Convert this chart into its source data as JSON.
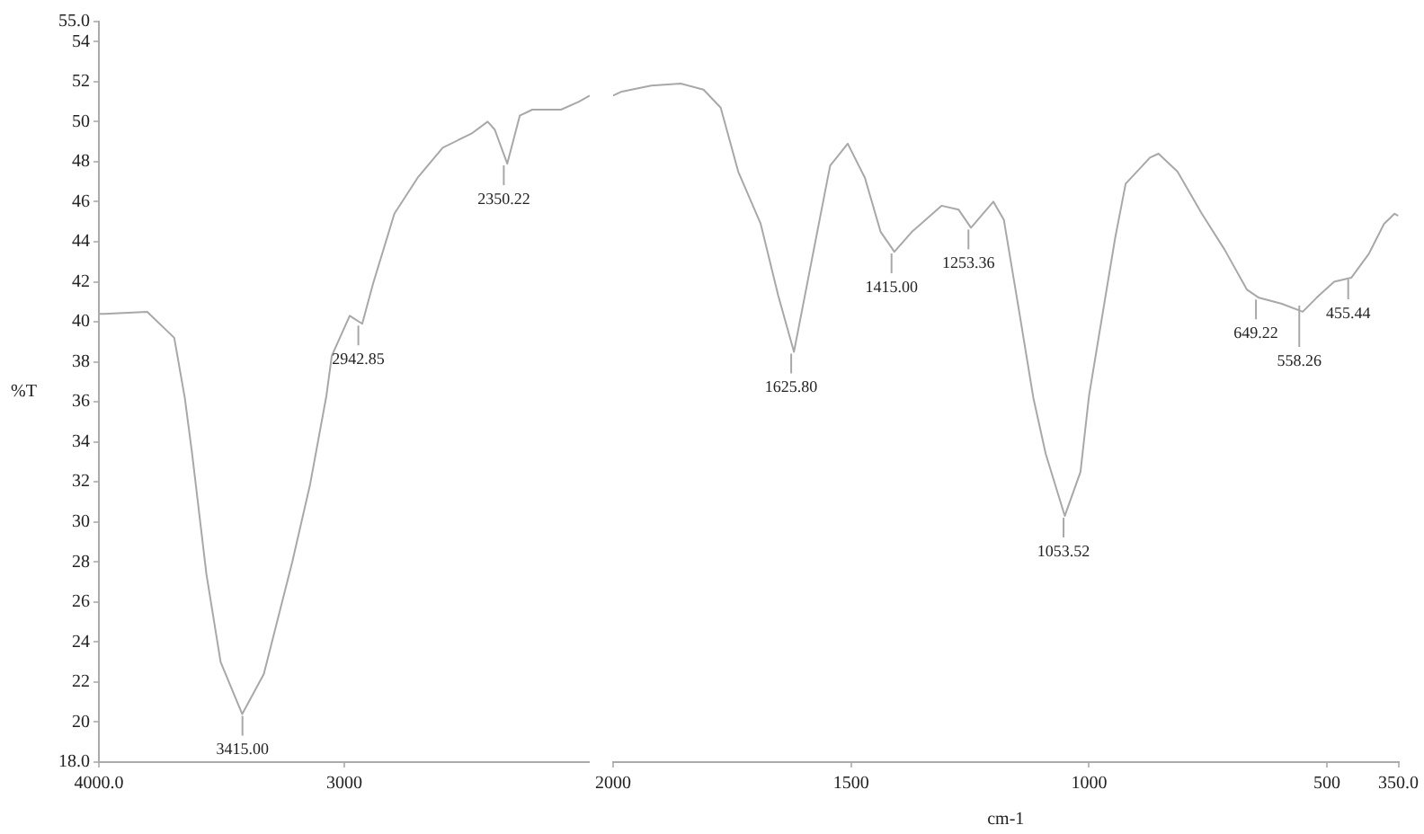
{
  "chart_data": [
    {
      "type": "line",
      "ylabel": "%T",
      "x": [
        4000,
        3978,
        3803,
        3693,
        3650,
        3620,
        3562,
        3504,
        3416,
        3328,
        3212,
        3139,
        3073,
        3051,
        2978,
        2927,
        2883,
        2796,
        2701,
        2599,
        2482,
        2416,
        2387,
        2336,
        2285,
        2234,
        2117,
        2044,
        2000
      ],
      "series": [
        {
          "color": "#a8a8a8",
          "values": [
            40.4,
            40.4,
            40.5,
            39.2,
            36.2,
            33.4,
            27.4,
            23.0,
            20.4,
            22.4,
            28.0,
            31.9,
            36.3,
            38.3,
            40.3,
            39.9,
            41.9,
            45.4,
            47.2,
            48.7,
            49.4,
            50.0,
            49.6,
            47.9,
            50.3,
            50.6,
            50.6,
            51.0,
            51.3
          ]
        }
      ],
      "xlim": [
        4000,
        2000
      ],
      "xticks": [
        {
          "value": 4000,
          "label": "4000.0"
        },
        3000
      ],
      "ylim": [
        18,
        55
      ],
      "yticks": [
        {
          "value": 18,
          "label": "18.0"
        },
        20,
        22,
        24,
        26,
        28,
        30,
        32,
        34,
        36,
        38,
        40,
        42,
        44,
        46,
        48,
        50,
        52,
        54,
        {
          "value": 55,
          "label": "55.0"
        }
      ],
      "grid": false,
      "legend": false,
      "marker": "none",
      "line_style": "solid",
      "annotations": [
        {
          "text": "3415.00",
          "x": 3415,
          "y": 20.4
        },
        {
          "text": "2942.85",
          "x": 2942.85,
          "y": 39.9
        },
        {
          "text": "2350.22",
          "x": 2350.22,
          "y": 47.9
        }
      ]
    },
    {
      "type": "line",
      "xlabel": "cm-1",
      "x": [
        2000,
        1982,
        1920,
        1858,
        1810,
        1774,
        1737,
        1690,
        1653,
        1620,
        1580,
        1544,
        1507,
        1471,
        1438,
        1409,
        1372,
        1310,
        1274,
        1248,
        1201,
        1179,
        1146,
        1117,
        1091,
        1051,
        1018,
        1000,
        982,
        945,
        923,
        872,
        854,
        814,
        763,
        715,
        668,
        643,
        595,
        551,
        522,
        485,
        449,
        412,
        380,
        358,
        350
      ],
      "series": [
        {
          "color": "#a8a8a8",
          "values": [
            51.3,
            51.5,
            51.8,
            51.9,
            51.6,
            50.7,
            47.5,
            44.9,
            41.3,
            38.5,
            43.4,
            47.8,
            48.9,
            47.2,
            44.5,
            43.5,
            44.5,
            45.8,
            45.6,
            44.7,
            46.0,
            45.1,
            40.4,
            36.2,
            33.4,
            30.3,
            32.5,
            36.3,
            38.9,
            44.2,
            46.9,
            48.2,
            48.4,
            47.5,
            45.4,
            43.6,
            41.6,
            41.2,
            40.9,
            40.5,
            41.2,
            42.0,
            42.2,
            43.4,
            44.9,
            45.4,
            45.3
          ]
        }
      ],
      "xlim": [
        2000,
        350
      ],
      "xticks": [
        2000,
        1500,
        1000,
        500,
        {
          "value": 350,
          "label": "350.0"
        }
      ],
      "ylim": [
        18,
        55
      ],
      "tick_labels": "x",
      "grid": false,
      "legend": false,
      "marker": "none",
      "line_style": "solid",
      "annotations": [
        {
          "text": "1625.80",
          "x": 1625.8,
          "y": 38.5
        },
        {
          "text": "1415.00",
          "x": 1415,
          "y": 43.5
        },
        {
          "text": "1253.36",
          "x": 1253.36,
          "y": 44.7
        },
        {
          "text": "1053.52",
          "x": 1053.52,
          "y": 30.3
        },
        {
          "text": "649.22",
          "x": 649.22,
          "y": 41.2
        },
        {
          "text": "558.26",
          "x": 558.26,
          "y": 40.9
        },
        {
          "text": "455.44",
          "x": 455.44,
          "y": 42.2
        }
      ]
    }
  ]
}
